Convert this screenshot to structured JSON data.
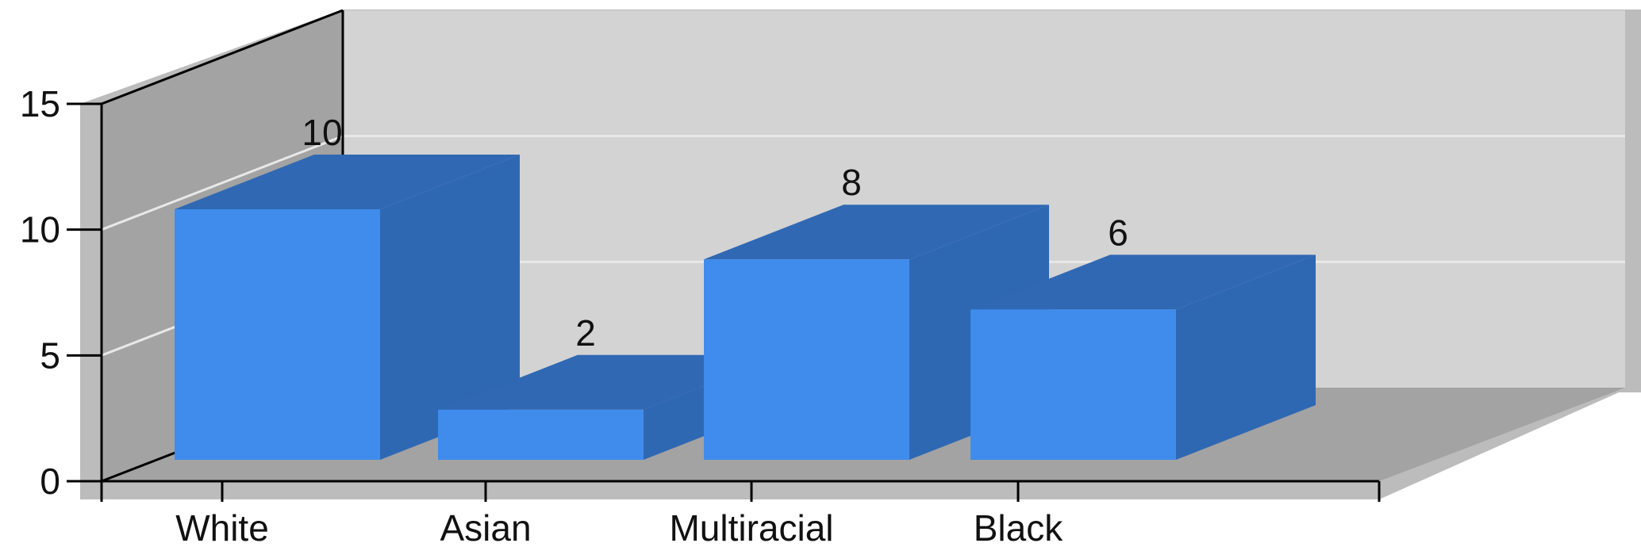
{
  "chart_data": {
    "type": "bar",
    "style": "3d",
    "categories": [
      "White",
      "Asian",
      "Multiracial",
      "Black"
    ],
    "values": [
      10,
      2,
      8,
      6
    ],
    "data_labels": [
      "10",
      "2",
      "8",
      "6"
    ],
    "yticks": [
      "0",
      "5",
      "10",
      "15"
    ],
    "ylim": [
      0,
      15
    ],
    "grid": true,
    "legend": "none",
    "colors": {
      "bar_front": "#3f8ced",
      "bar_side": "#2f68b2",
      "bar_top": "#3068b3",
      "back_wall": "#d3d3d3",
      "left_wall": "#a3a3a3",
      "floor": "#a3a3a3",
      "wall_edge": "#bcbcbc",
      "gridline": "#e8e8e8"
    }
  }
}
